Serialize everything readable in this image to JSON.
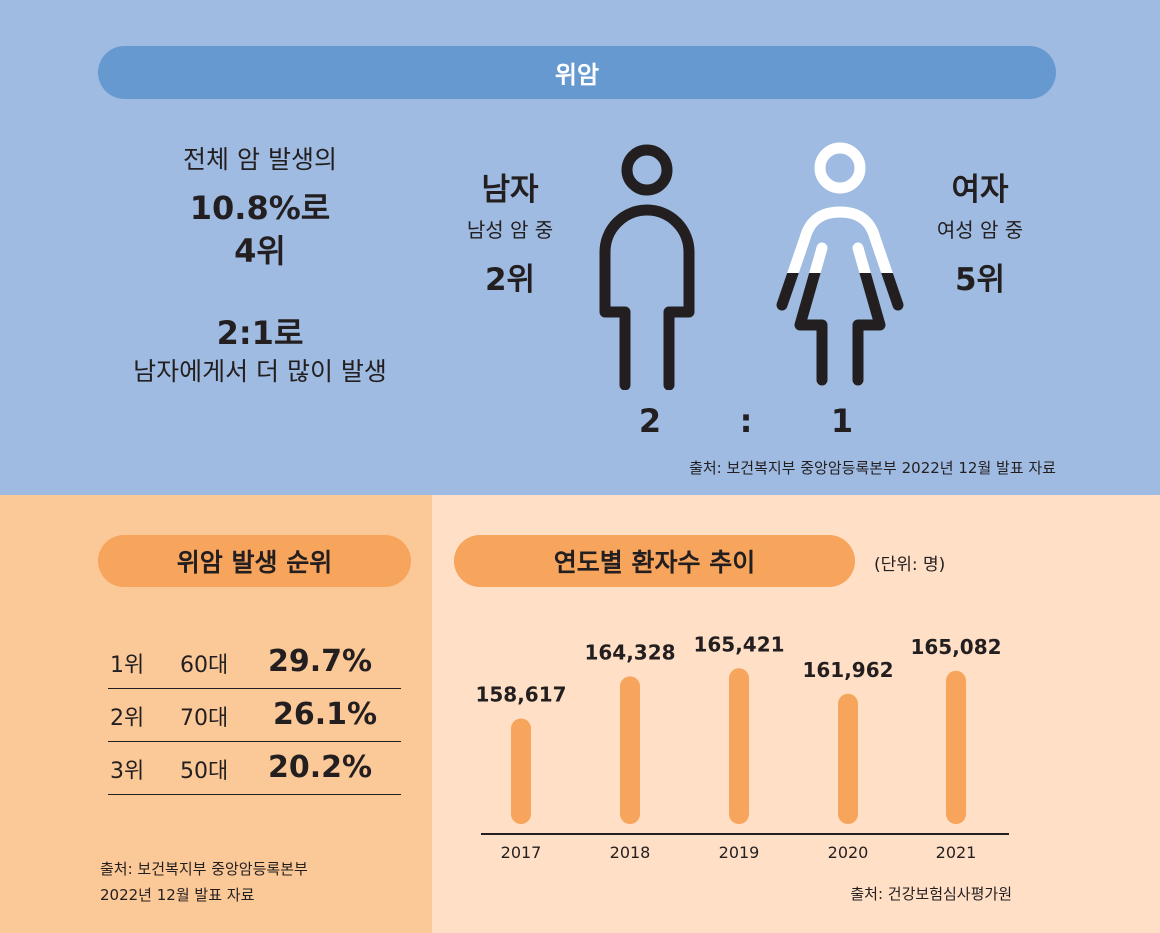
{
  "top": {
    "title": "위암",
    "left": {
      "line1": "전체 암 발생의",
      "line2": "10.8%로",
      "line3": "4위",
      "ratio": "2:1로",
      "line4": "남자에게서 더 많이 발생"
    },
    "male": {
      "label": "남자",
      "sub": "남성 암 중",
      "rank": "2위"
    },
    "female": {
      "label": "여자",
      "sub": "여성 암 중",
      "rank": "5위"
    },
    "ratio_left": "2",
    "ratio_colon": ":",
    "ratio_right": "1",
    "source": "출처: 보건복지부 중앙암등록본부 2022년 12월 발표 자료"
  },
  "ranking": {
    "title": "위암 발생 순위",
    "rows": [
      {
        "rank": "1위",
        "age": "60대",
        "pct": "29.7%"
      },
      {
        "rank": "2위",
        "age": "70대",
        "pct": "26.1%"
      },
      {
        "rank": "3위",
        "age": "50대",
        "pct": "20.2%"
      }
    ],
    "source_line1": "출처: 보건복지부 중앙암등록본부",
    "source_line2": "2022년 12월 발표 자료"
  },
  "trend": {
    "title": "연도별 환자수 추이",
    "unit": "(단위: 명)",
    "source": "출처: 건강보험심사평가원"
  },
  "chart_data": {
    "type": "bar",
    "title": "연도별 환자수 추이",
    "unit": "(단위: 명)",
    "categories": [
      "2017",
      "2018",
      "2019",
      "2020",
      "2021"
    ],
    "values": [
      158617,
      164328,
      165421,
      161962,
      165082
    ],
    "value_labels": [
      "158,617",
      "164,328",
      "165,421",
      "161,962",
      "165,082"
    ],
    "bar_color": "#f7a45c",
    "grid": false
  },
  "colors": {
    "top_bg": "#9fbbe2",
    "title_pill": "#6699d0",
    "left_bottom_bg": "#fbc897",
    "right_bottom_bg": "#ffdfc6",
    "accent": "#f7a45c",
    "dark": "#231f20"
  }
}
